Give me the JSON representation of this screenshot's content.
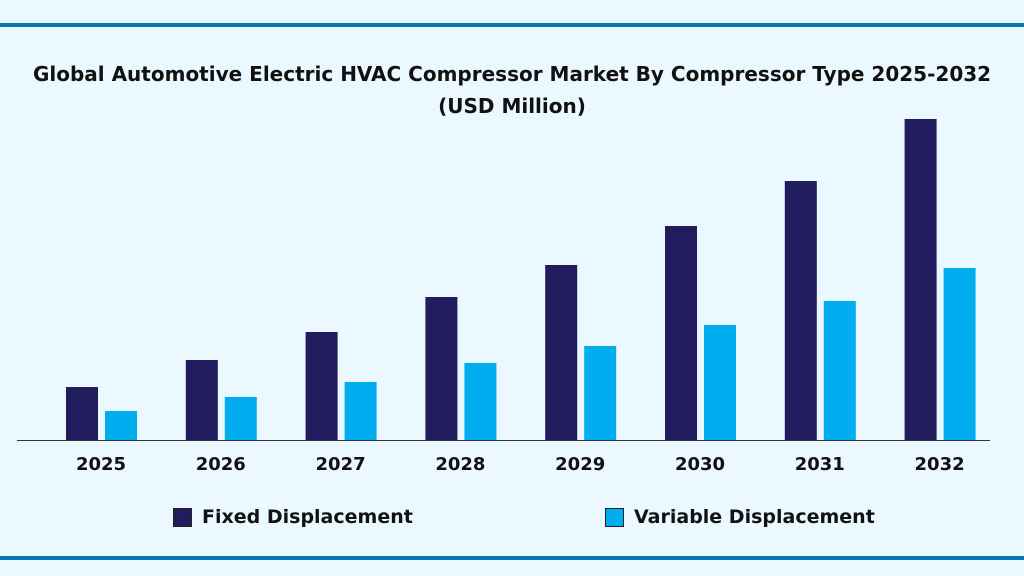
{
  "chart_data": {
    "type": "bar",
    "title": "Global Automotive Electric HVAC Compressor Market By Compressor Type 2025-2032",
    "subtitle": "(USD Million)",
    "categories": [
      "2025",
      "2026",
      "2027",
      "2028",
      "2029",
      "2030",
      "2031",
      "2032"
    ],
    "series": [
      {
        "name": "Fixed Displacement",
        "color": "#211c5e",
        "values": [
          53,
          80,
          108,
          143,
          175,
          214,
          259,
          321
        ]
      },
      {
        "name": "Variable Displacement",
        "color": "#00aeef",
        "values": [
          29,
          43,
          58,
          77,
          94,
          115,
          139,
          172
        ]
      }
    ],
    "ylim": [
      0,
      321
    ],
    "grid": false,
    "legend": "bottom",
    "y_axis_shown": false
  }
}
